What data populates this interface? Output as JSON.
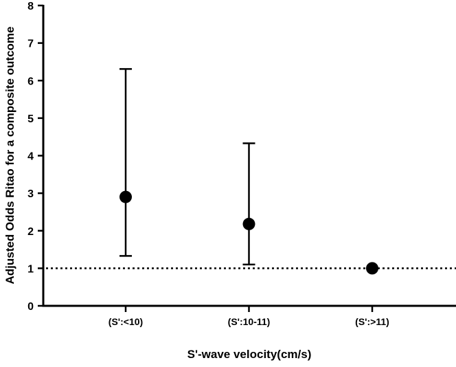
{
  "chart_data": {
    "type": "scatter",
    "title": "",
    "xlabel": "S'-wave velocity(cm/s)",
    "ylabel": "Adjusted Odds Ritao for a composite outcome",
    "ylim": [
      0,
      8
    ],
    "yticks": [
      "0",
      "1",
      "2",
      "3",
      "4",
      "5",
      "6",
      "7",
      "8"
    ],
    "categories": [
      "(S':<10)",
      "(S':10-11)",
      "(S':>11)"
    ],
    "values": [
      2.9,
      2.18,
      1.0
    ],
    "ci_lower": [
      1.33,
      1.1,
      null
    ],
    "ci_upper": [
      6.31,
      4.33,
      null
    ],
    "reference_line": 1,
    "reference_line_style": "dotted",
    "grid": false,
    "marker_color": "#000000"
  }
}
